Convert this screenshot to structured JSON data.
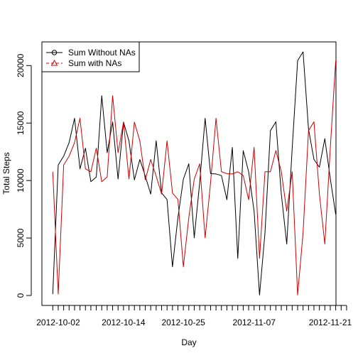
{
  "chart_data": {
    "type": "line",
    "title": "",
    "xlabel": "Day",
    "ylabel": "Total Steps",
    "ylim": [
      0,
      21194
    ],
    "x_tick_labels": [
      "2012-10-02",
      "2012-10-14",
      "2012-10-25",
      "2012-11-07",
      "2012-11-21"
    ],
    "y_tick_labels": [
      "0",
      "5000",
      "10000",
      "15000",
      "20000"
    ],
    "y_ticks": [
      0,
      5000,
      10000,
      15000,
      20000
    ],
    "legend_position": "top-left",
    "series": [
      {
        "name": "Sum Without NAs",
        "color": "#000000",
        "marker": "circle",
        "values": [
          126,
          11352,
          12116,
          13294,
          15420,
          11015,
          12811,
          9900,
          10304,
          17382,
          12426,
          15098,
          10139,
          15084,
          13452,
          10056,
          11829,
          10395,
          8821,
          13460,
          8918,
          8355,
          2492,
          6778,
          10119,
          11458,
          5018,
          9819,
          15414,
          10600,
          10571,
          10439,
          8334,
          12883,
          3219,
          12608,
          10765,
          7336,
          41,
          5441,
          14339,
          15110,
          8841,
          4472,
          12787,
          20427,
          21194,
          14478,
          11834,
          11162,
          13646,
          10183,
          7047
        ]
      },
      {
        "name": "Sum with NAs",
        "color": "#cc0000",
        "marker": "triangle",
        "values": [
          10766,
          126,
          11352,
          12116,
          13294,
          15420,
          11015,
          10766,
          12811,
          9900,
          10304,
          17382,
          12426,
          15098,
          10139,
          15084,
          13452,
          10056,
          11829,
          10395,
          8821,
          13460,
          8918,
          8355,
          2492,
          6778,
          10119,
          11458,
          5018,
          9819,
          15414,
          10766,
          10600,
          10571,
          10766,
          10439,
          8334,
          12883,
          3219,
          10766,
          10766,
          12608,
          10765,
          7336,
          10766,
          41,
          5441,
          14339,
          15110,
          8841,
          4472,
          12787,
          20427,
          21194,
          14478
        ]
      }
    ]
  }
}
